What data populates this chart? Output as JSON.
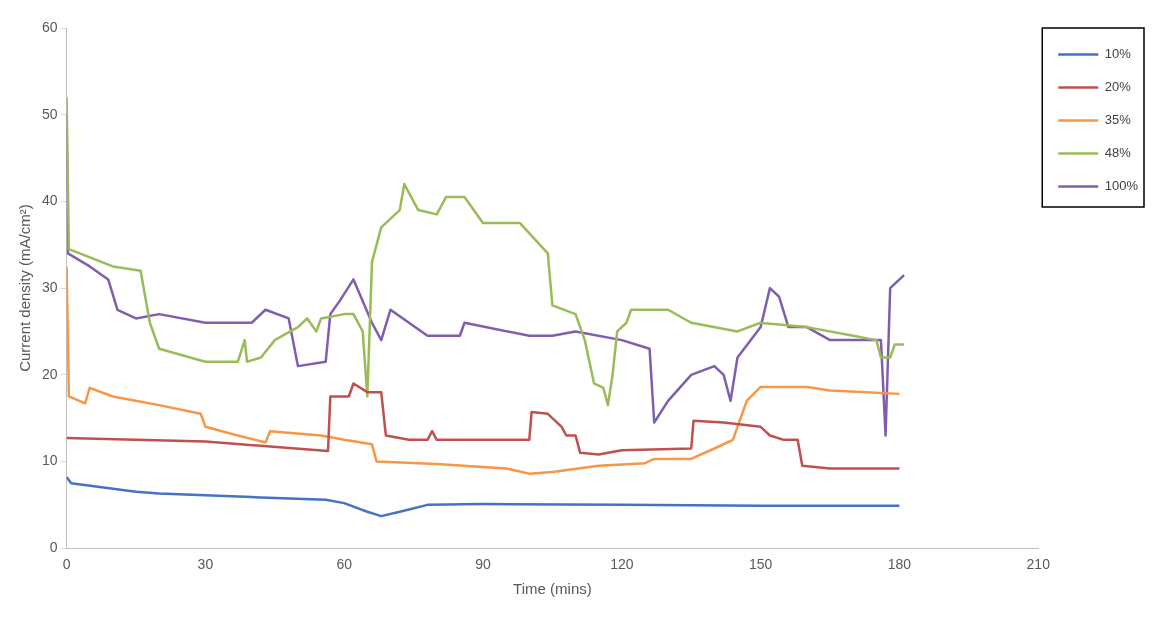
{
  "chart_data": {
    "type": "line",
    "xlabel": "Time (mins)",
    "ylabel": "Current density (mA/cm²)",
    "xlim": [
      0,
      210
    ],
    "xticks": [
      0,
      30,
      60,
      90,
      120,
      150,
      180,
      210
    ],
    "ylim": [
      0,
      60
    ],
    "yticks": [
      0,
      10,
      20,
      30,
      40,
      50,
      60
    ],
    "grid": false,
    "legend": "top right",
    "marker": "none",
    "line_style": "solid",
    "series": [
      {
        "name": "10%",
        "color": "#4472c4",
        "x": [
          0,
          1,
          15,
          20,
          40,
          56,
          60,
          65,
          68,
          72,
          78,
          90,
          120,
          150,
          180
        ],
        "values": [
          8.2,
          7.5,
          6.5,
          6.3,
          5.9,
          5.6,
          5.2,
          4.2,
          3.7,
          4.2,
          5.0,
          5.1,
          5.0,
          4.9,
          4.9
        ]
      },
      {
        "name": "20%",
        "color": "#c0504d",
        "x": [
          0,
          30,
          56.5,
          57,
          61,
          62,
          65,
          68,
          69,
          74,
          78,
          79,
          80,
          100,
          100.5,
          104,
          107,
          108,
          110,
          111,
          115,
          120,
          135,
          135.5,
          142,
          150,
          152,
          155,
          158,
          159,
          165,
          180
        ],
        "values": [
          12.7,
          12.3,
          11.2,
          17.5,
          17.5,
          19,
          18,
          18,
          13,
          12.5,
          12.5,
          13.5,
          12.5,
          12.5,
          15.7,
          15.5,
          14,
          13,
          13,
          11,
          10.8,
          11.3,
          11.5,
          14.7,
          14.5,
          14,
          13,
          12.5,
          12.5,
          9.5,
          9.2,
          9.2
        ]
      },
      {
        "name": "35%",
        "color": "#f79646",
        "x": [
          0,
          0.5,
          4,
          5,
          10,
          20,
          29,
          30,
          37,
          43,
          44,
          55,
          60,
          66,
          67,
          80,
          95,
          100,
          105,
          115,
          125,
          127,
          135,
          140,
          144,
          147,
          150,
          160,
          165,
          180
        ],
        "values": [
          32.5,
          17.5,
          16.7,
          18.5,
          17.5,
          16.5,
          15.5,
          14,
          13,
          12.2,
          13.5,
          13,
          12.5,
          12,
          10,
          9.7,
          9.2,
          8.6,
          8.8,
          9.5,
          9.8,
          10.3,
          10.3,
          11.5,
          12.5,
          17,
          18.6,
          18.6,
          18.2,
          17.8
        ]
      },
      {
        "name": "48%",
        "color": "#9bbb59",
        "x": [
          0,
          0.5,
          10,
          16,
          17,
          18,
          20,
          30,
          37,
          38.5,
          39,
          42,
          45,
          50,
          52,
          54,
          55,
          60,
          62,
          64,
          65,
          66,
          68,
          72,
          73,
          76,
          80,
          82,
          86,
          90,
          98,
          104,
          105,
          110,
          112,
          114,
          116,
          117,
          118,
          119,
          121,
          122,
          130,
          135,
          145,
          150,
          160,
          170,
          175,
          176,
          178,
          179,
          181
        ],
        "values": [
          52,
          34.5,
          32.5,
          32,
          29,
          26,
          23,
          21.5,
          21.5,
          24,
          21.5,
          22,
          24,
          25.5,
          26.5,
          25,
          26.5,
          27,
          27,
          25,
          17.5,
          33,
          37,
          39,
          42,
          39,
          38.5,
          40.5,
          40.5,
          37.5,
          37.5,
          34,
          28,
          27,
          24,
          19,
          18.5,
          16.5,
          20,
          25,
          26,
          27.5,
          27.5,
          26,
          25,
          26,
          25.5,
          24.5,
          24,
          22,
          22,
          23.5,
          23.5
        ]
      },
      {
        "name": "100%",
        "color": "#7f5fad",
        "x": [
          0,
          0.3,
          5,
          9,
          11,
          15,
          20,
          30,
          40,
          43,
          48,
          50,
          56,
          57,
          59,
          62,
          66,
          68,
          70,
          74,
          78,
          85,
          86,
          100,
          105,
          110,
          120,
          126,
          127,
          130,
          135,
          140,
          142,
          143.5,
          145,
          150,
          152,
          154,
          156,
          160,
          165,
          176,
          177,
          178,
          181
        ],
        "values": [
          50,
          34,
          32.5,
          31,
          27.5,
          26.5,
          27,
          26,
          26,
          27.5,
          26.5,
          21,
          21.5,
          27,
          28.5,
          31,
          26,
          24,
          27.5,
          26,
          24.5,
          24.5,
          26,
          24.5,
          24.5,
          25,
          24,
          23,
          14.5,
          17,
          20,
          21,
          20,
          17,
          22,
          25.5,
          30,
          29,
          25.5,
          25.5,
          24,
          24,
          13,
          30,
          31.5
        ]
      }
    ]
  }
}
